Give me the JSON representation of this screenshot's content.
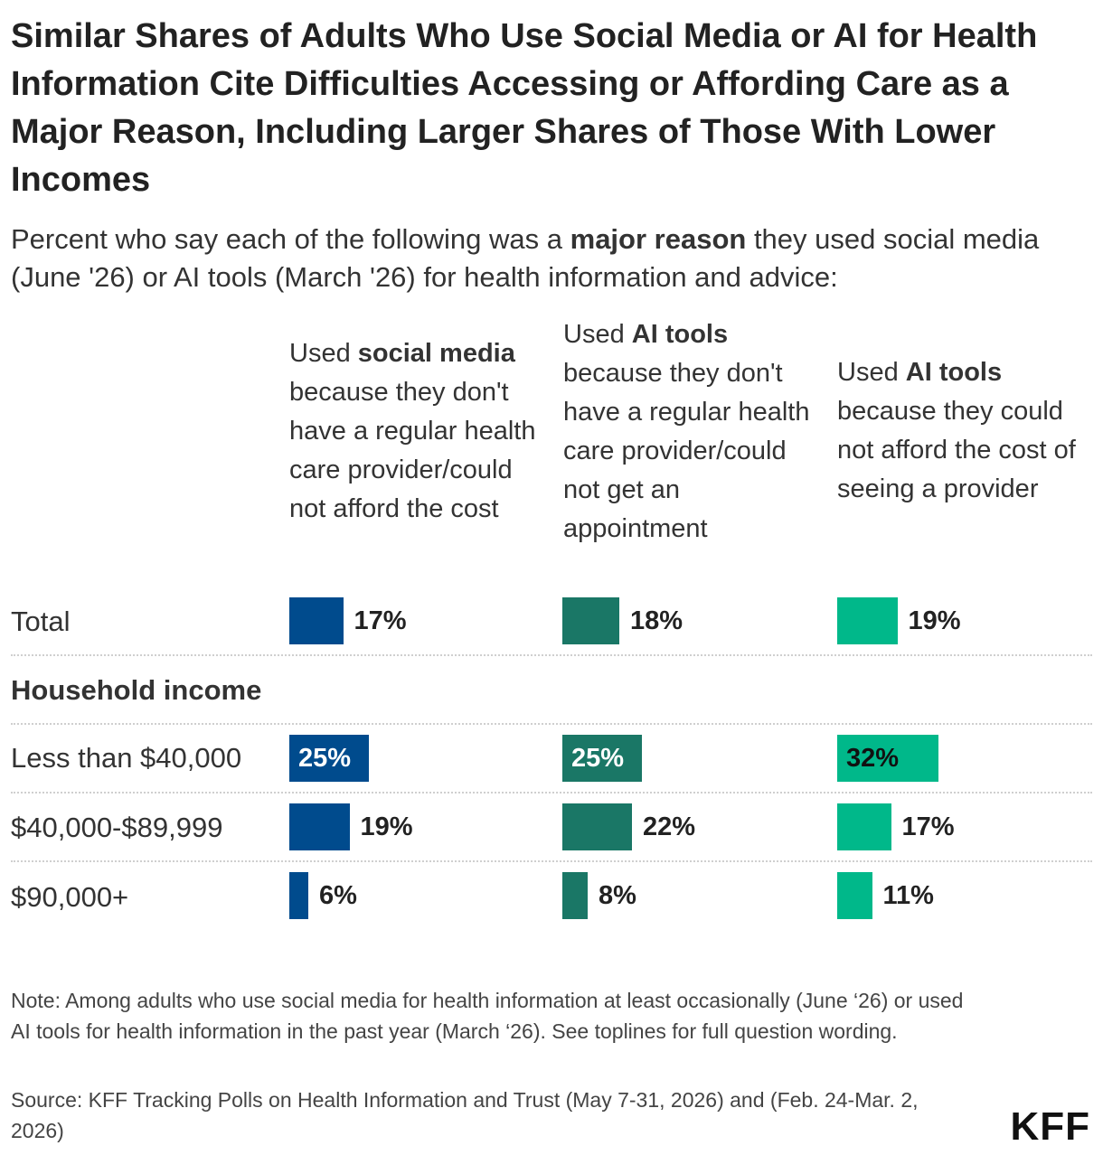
{
  "chart_data": {
    "type": "bar",
    "title": "Similar Shares of Adults Who Use Social Media or AI for Health Information Cite Difficulties Accessing or Affording Care as a Major Reason, Including Larger Shares of Those With Lower Incomes",
    "subtitle": {
      "pre": "Percent who say each of the following was a ",
      "bold": "major reason",
      "post": " they used social media (June '26) or AI tools (March '26) for health information and advice:"
    },
    "categories": [
      "Total",
      "Less than $40,000",
      "$40,000-$89,999",
      "$90,000+"
    ],
    "group_label": "Household income",
    "series": [
      {
        "name_pre": "Used ",
        "name_bold": "social media",
        "name_post": " because they don't have a regular health care provider/could not afford the cost",
        "color": "#004b8d",
        "values": [
          17,
          25,
          19,
          6
        ],
        "labels": [
          "17%",
          "25%",
          "19%",
          "6%"
        ]
      },
      {
        "name_pre": "Used ",
        "name_bold": "AI tools",
        "name_post": " because they don't have a regular health care provider/could not get an appointment",
        "color": "#1a7766",
        "values": [
          18,
          25,
          22,
          8
        ],
        "labels": [
          "18%",
          "25%",
          "22%",
          "8%"
        ]
      },
      {
        "name_pre": "Used ",
        "name_bold": "AI tools",
        "name_post": " because they could not afford the cost of seeing a provider",
        "color": "#00b88a",
        "values": [
          19,
          32,
          17,
          11
        ],
        "labels": [
          "19%",
          "32%",
          "17%",
          "11%"
        ]
      }
    ],
    "xlim": [
      0,
      100
    ],
    "grid": false,
    "legend": "column headers"
  },
  "note": "Note: Among adults who use social media for health information at least occasionally (June ‘26) or used AI tools for health information in the past year (March ‘26). See toplines for full question wording.",
  "source": "Source: KFF Tracking Polls on Health Information and Trust (May 7-31, 2026) and (Feb. 24-Mar. 2, 2026)",
  "logo": "KFF"
}
